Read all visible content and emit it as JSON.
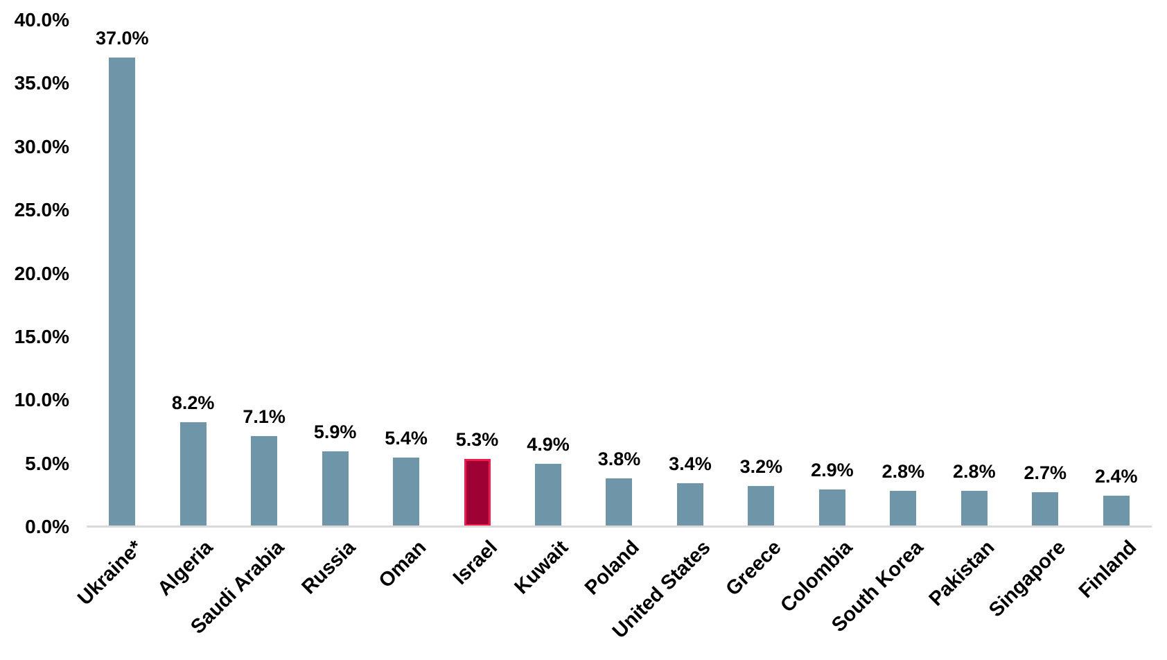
{
  "chart_data": {
    "type": "bar",
    "title": "",
    "xlabel": "",
    "ylabel": "",
    "categories": [
      "Ukraine*",
      "Algeria",
      "Saudi Arabia",
      "Russia",
      "Oman",
      "Israel",
      "Kuwait",
      "Poland",
      "United States",
      "Greece",
      "Colombia",
      "South Korea",
      "Pakistan",
      "Singapore",
      "Finland"
    ],
    "values": [
      37.0,
      8.2,
      7.1,
      5.9,
      5.4,
      5.3,
      4.9,
      3.8,
      3.4,
      3.2,
      2.9,
      2.8,
      2.8,
      2.7,
      2.4
    ],
    "value_labels": [
      "37.0%",
      "8.2%",
      "7.1%",
      "5.9%",
      "5.4%",
      "5.3%",
      "4.9%",
      "3.8%",
      "3.4%",
      "3.2%",
      "2.9%",
      "2.8%",
      "2.8%",
      "2.7%",
      "2.4%"
    ],
    "highlight_index": 5,
    "highlight_category": "Israel",
    "ylim": [
      0,
      40
    ],
    "y_tick_labels": [
      "0.0%",
      "5.0%",
      "10.0%",
      "15.0%",
      "20.0%",
      "25.0%",
      "30.0%",
      "35.0%",
      "40.0%"
    ],
    "y_tick_values": [
      0,
      5,
      10,
      15,
      20,
      25,
      30,
      35,
      40
    ],
    "grid": false,
    "legend_position": "none",
    "colors": {
      "bar_fill": "#6E96A8",
      "highlight_fill": "#9E0235",
      "highlight_border": "#F01A4D",
      "axis_line": "#D9D9D9",
      "label_text": "#000000",
      "background": "#FFFFFF"
    }
  }
}
